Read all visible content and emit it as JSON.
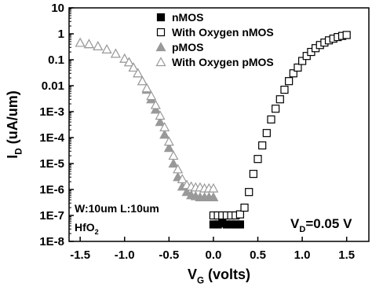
{
  "chart_data": {
    "type": "scatter",
    "xlabel": {
      "text": "V",
      "sub": "G",
      "rest": " (volts)"
    },
    "ylabel": {
      "text": "I",
      "sub": "D",
      "rest": " (uA/um)"
    },
    "xlim": [
      -1.625,
      1.75
    ],
    "xticks": [
      {
        "value": -1.5,
        "label": "-1.5"
      },
      {
        "value": -1.0,
        "label": "-1.0"
      },
      {
        "value": -0.5,
        "label": "-0.5"
      },
      {
        "value": 0.0,
        "label": "0.0"
      },
      {
        "value": 0.5,
        "label": "0.5"
      },
      {
        "value": 1.0,
        "label": "1.0"
      },
      {
        "value": 1.5,
        "label": "1.5"
      }
    ],
    "ylim": [
      1e-08,
      10
    ],
    "yticks": [
      {
        "value": 1e-08,
        "label": "1E-8"
      },
      {
        "value": 1e-07,
        "label": "1E-7"
      },
      {
        "value": 1e-06,
        "label": "1E-6"
      },
      {
        "value": 1e-05,
        "label": "1E-5"
      },
      {
        "value": 0.0001,
        "label": "1E-4"
      },
      {
        "value": 0.001,
        "label": "1E-3"
      },
      0.01,
      0.1,
      1,
      10
    ],
    "log_y": true,
    "legend": "top",
    "annotations": [
      {
        "text": "W:10um L:10um"
      },
      {
        "text": "HfO",
        "sub": "2"
      },
      {
        "text": "V",
        "sub": "D",
        "rest": "=0.05 V"
      }
    ],
    "series": [
      {
        "name": "nMOS",
        "color": "#000000",
        "marker": "square",
        "filled": true,
        "x": [
          0.0,
          0.05,
          0.1,
          0.15,
          0.2,
          0.25,
          0.3
        ],
        "values": [
          4.5e-08,
          4.5e-08,
          5e-08,
          4.5e-08,
          4.5e-08,
          4.5e-08,
          4.5e-08
        ]
      },
      {
        "name": "With Oxygen nMOS",
        "color": "#000000",
        "marker": "square",
        "filled": false,
        "x": [
          0.0,
          0.05,
          0.1,
          0.15,
          0.2,
          0.25,
          0.3,
          0.35,
          0.4,
          0.45,
          0.5,
          0.55,
          0.6,
          0.65,
          0.7,
          0.75,
          0.8,
          0.85,
          0.9,
          0.95,
          1.0,
          1.05,
          1.1,
          1.15,
          1.2,
          1.25,
          1.3,
          1.35,
          1.4,
          1.45,
          1.5
        ],
        "values": [
          1e-07,
          1e-07,
          1e-07,
          1e-07,
          1e-07,
          1e-07,
          1.1e-07,
          2e-07,
          8e-07,
          4e-06,
          1.5e-05,
          5e-05,
          0.00015,
          0.0005,
          0.0013,
          0.003,
          0.007,
          0.015,
          0.03,
          0.05,
          0.09,
          0.14,
          0.2,
          0.28,
          0.37,
          0.46,
          0.56,
          0.65,
          0.75,
          0.83,
          0.9
        ]
      },
      {
        "name": "pMOS",
        "color": "#999999",
        "marker": "triangle",
        "filled": true,
        "x": [
          -1.5,
          -1.4,
          -1.3,
          -1.2,
          -1.1,
          -1.0,
          -0.95,
          -0.9,
          -0.85,
          -0.8,
          -0.75,
          -0.7,
          -0.65,
          -0.6,
          -0.55,
          -0.5,
          -0.45,
          -0.4,
          -0.35,
          -0.3,
          -0.25,
          -0.2,
          -0.15,
          -0.1,
          -0.05,
          0.0
        ],
        "values": [
          0.45,
          0.4,
          0.33,
          0.25,
          0.17,
          0.11,
          0.08,
          0.05,
          0.03,
          0.015,
          0.007,
          0.003,
          0.0012,
          0.0004,
          0.00013,
          4e-05,
          1e-05,
          3e-06,
          1.3e-06,
          8e-07,
          6e-07,
          5.5e-07,
          5e-07,
          5e-07,
          5e-07,
          5e-07
        ]
      },
      {
        "name": "With Oxygen pMOS",
        "color": "#999999",
        "marker": "triangle",
        "filled": false,
        "x": [
          -1.5,
          -1.4,
          -1.3,
          -1.2,
          -1.1,
          -1.0,
          -0.95,
          -0.9,
          -0.85,
          -0.8,
          -0.75,
          -0.7,
          -0.65,
          -0.6,
          -0.55,
          -0.5,
          -0.45,
          -0.4,
          -0.35,
          -0.3,
          -0.25,
          -0.2,
          -0.15,
          -0.1,
          -0.05,
          0.0
        ],
        "values": [
          0.45,
          0.4,
          0.33,
          0.25,
          0.17,
          0.11,
          0.08,
          0.05,
          0.03,
          0.015,
          0.008,
          0.004,
          0.0018,
          0.0007,
          0.00025,
          7e-05,
          2e-05,
          6e-06,
          2.5e-06,
          1.5e-06,
          1.3e-06,
          1.2e-06,
          1.2e-06,
          1.1e-06,
          1.1e-06,
          1.1e-06
        ]
      }
    ]
  }
}
